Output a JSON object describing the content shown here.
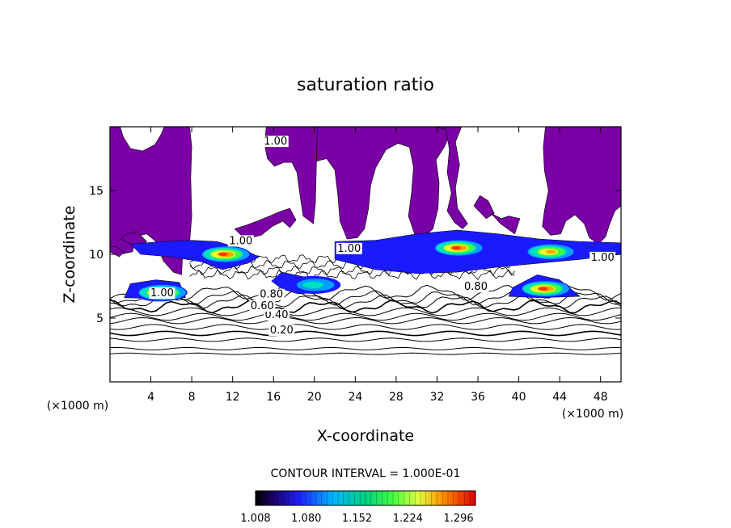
{
  "chart_data": {
    "type": "contour",
    "title": "saturation ratio",
    "xlabel": "X-coordinate",
    "ylabel": "Z-coordinate",
    "x_unit": "(×1000 m)",
    "y_unit": "(×1000 m)",
    "xlim": [
      0,
      50
    ],
    "ylim": [
      0,
      20
    ],
    "x_ticks": [
      4,
      8,
      12,
      16,
      20,
      24,
      28,
      32,
      36,
      40,
      44,
      48
    ],
    "y_ticks": [
      5,
      10,
      15
    ],
    "contour_interval_text": "CONTOUR INTERVAL = 1.000E-01",
    "contour_levels": [
      0.1,
      0.2,
      0.3,
      0.4,
      0.5,
      0.6,
      0.7,
      0.8,
      0.9,
      1.0
    ],
    "contour_labels": [
      {
        "text": "0.20",
        "x": 16.8,
        "y": 3.8
      },
      {
        "text": "0.40",
        "x": 16.3,
        "y": 5.0
      },
      {
        "text": "0.60",
        "x": 14.9,
        "y": 5.7
      },
      {
        "text": "0.80",
        "x": 15.8,
        "y": 6.6
      },
      {
        "text": "1.00",
        "x": 5.1,
        "y": 6.7
      },
      {
        "text": "1.00",
        "x": 16.2,
        "y": 18.6
      },
      {
        "text": "1.00",
        "x": 23.4,
        "y": 10.2
      },
      {
        "text": "1.00",
        "x": 12.8,
        "y": 10.8
      },
      {
        "text": "1.00",
        "x": 48.2,
        "y": 9.5
      },
      {
        "text": "0.80",
        "x": 35.8,
        "y": 7.2
      }
    ],
    "supersaturated_fill_color": "#7a00a6",
    "colorbar": {
      "min": 1.008,
      "max": 1.32,
      "ticks": [
        "1.008",
        "1.080",
        "1.152",
        "1.224",
        "1.296"
      ]
    },
    "supersaturation_regions": [
      {
        "x": 11.2,
        "y": 10.0,
        "peak": 1.3
      },
      {
        "x": 34.0,
        "y": 10.5,
        "peak": 1.3
      },
      {
        "x": 43.0,
        "y": 10.2,
        "peak": 1.25
      },
      {
        "x": 20.0,
        "y": 7.6,
        "peak": 1.12
      },
      {
        "x": 5.0,
        "y": 7.0,
        "peak": 1.3
      },
      {
        "x": 42.5,
        "y": 7.3,
        "peak": 1.3
      }
    ]
  }
}
